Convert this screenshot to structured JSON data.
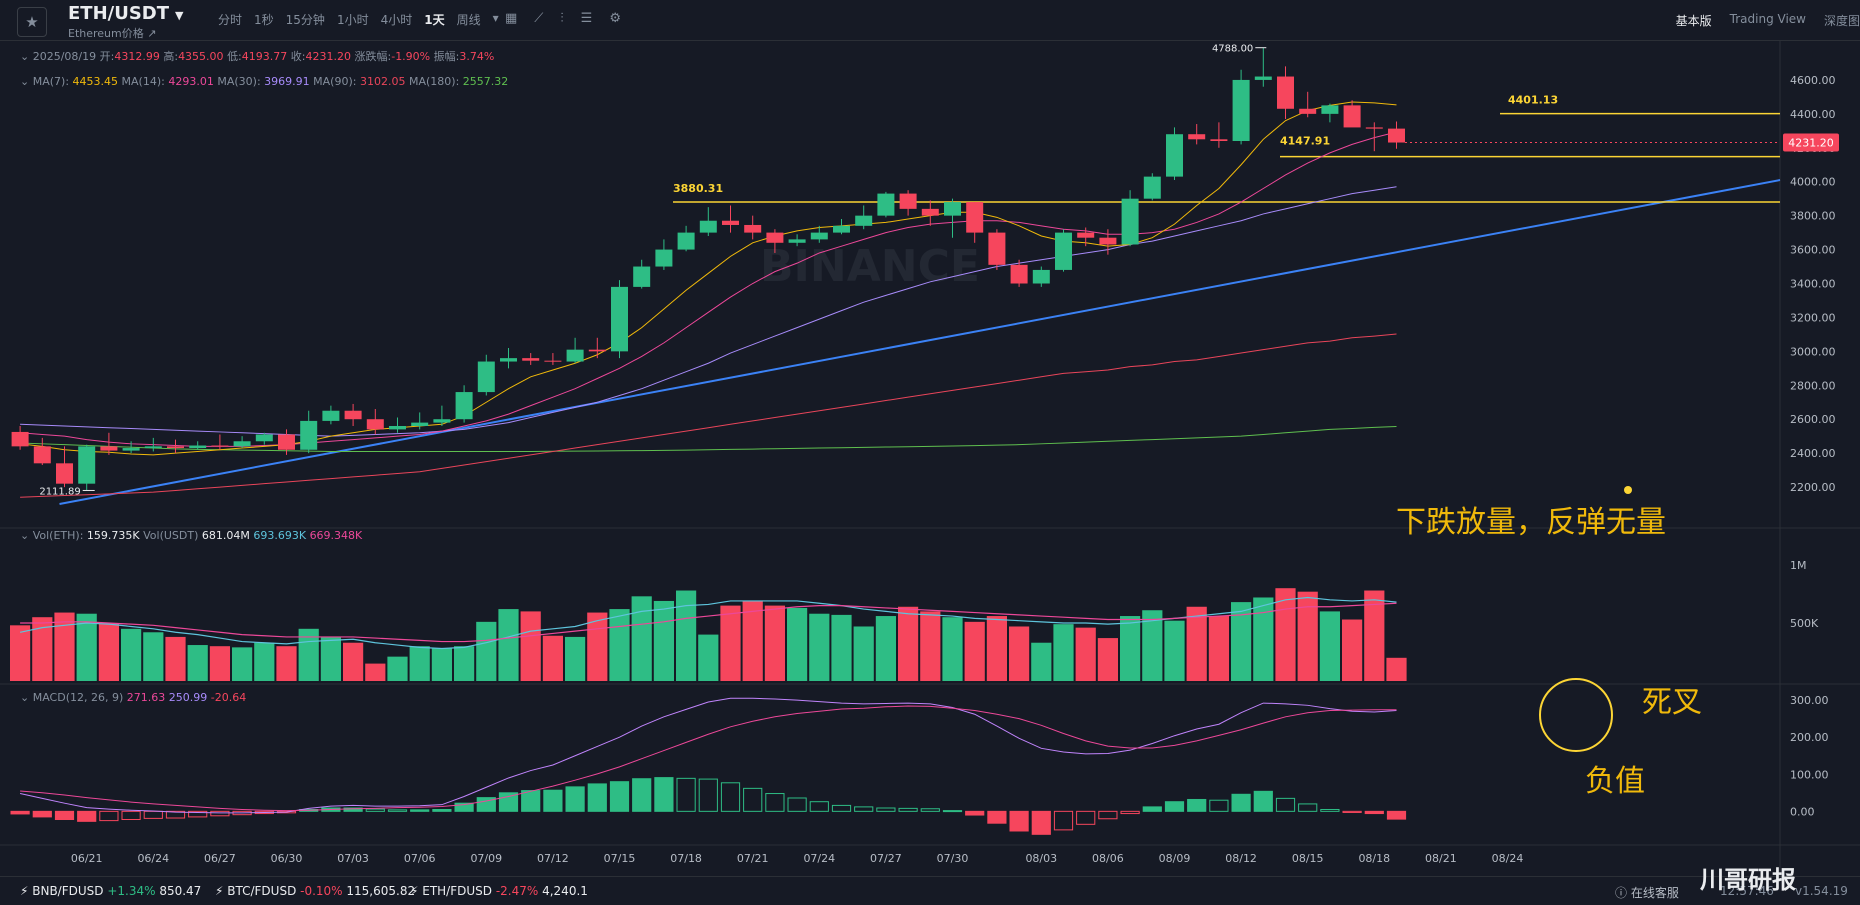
{
  "header": {
    "symbol": "ETH/USDT",
    "subtitle": "Ethereum价格 ↗",
    "intervals": [
      {
        "label": "分时"
      },
      {
        "label": "1秒"
      },
      {
        "label": "15分钟"
      },
      {
        "label": "1小时"
      },
      {
        "label": "4小时"
      },
      {
        "label": "1天",
        "active": true
      },
      {
        "label": "周线"
      }
    ],
    "views": [
      {
        "label": "基本版",
        "active": true
      },
      {
        "label": "Trading View"
      },
      {
        "label": "深度图"
      }
    ],
    "icons": [
      "calendar-icon",
      "draw-icon",
      "indicator-icon",
      "template-icon",
      "settings-icon"
    ]
  },
  "ohlc": {
    "date": "2025/08/19",
    "open_label": "开:",
    "open": "4312.99",
    "high_label": "高:",
    "high": "4355.00",
    "low_label": "低:",
    "low": "4193.77",
    "close_label": "收:",
    "close": "4231.20",
    "change_label": "涨跌幅:",
    "change": "-1.90%",
    "amp_label": "振幅:",
    "amp": "3.74%"
  },
  "ma_legend": {
    "ma7_label": "MA(7):",
    "ma7": "4453.45",
    "ma14_label": "MA(14):",
    "ma14": "4293.01",
    "ma30_label": "MA(30):",
    "ma30": "3969.91",
    "ma90_label": "MA(90):",
    "ma90": "3102.05",
    "ma180_label": "MA(180):",
    "ma180": "2557.32"
  },
  "vol_legend": {
    "eth_label": "Vol(ETH):",
    "eth": "159.735K",
    "usdt_label": "Vol(USDT)",
    "usdt": "681.04M",
    "ma1": "693.693K",
    "ma2": "669.348K"
  },
  "macd_legend": {
    "label": "MACD(12, 26, 9)",
    "dif": "271.63",
    "dea": "250.99",
    "hist": "-20.64"
  },
  "price_axis": [
    "4600.00",
    "4400.00",
    "4200.00",
    "4000.00",
    "3800.00",
    "3600.00",
    "3400.00",
    "3200.00",
    "3000.00",
    "2800.00",
    "2600.00",
    "2400.00",
    "2200.00"
  ],
  "vol_axis": [
    "1M",
    "500K"
  ],
  "macd_axis": [
    "300.00",
    "200.00",
    "100.00",
    "0.00"
  ],
  "date_axis": [
    "06/21",
    "06/24",
    "06/27",
    "06/30",
    "07/03",
    "07/06",
    "07/09",
    "07/12",
    "07/15",
    "07/18",
    "07/21",
    "07/24",
    "07/27",
    "07/30",
    "08/03",
    "08/06",
    "08/09",
    "08/12",
    "08/15",
    "08/18",
    "08/21",
    "08/24"
  ],
  "current_price_tag": "4231.20",
  "level_labels": {
    "l3880": "3880.31",
    "l4147": "4147.91",
    "l4401": "4401.13",
    "high": "4788.00",
    "low": "2111.89"
  },
  "annotations": {
    "volume_note": "下跌放量，反弹无量",
    "death_cross": "死叉",
    "negative": "负值"
  },
  "watermark": "BINANCE",
  "corner_watermark": "川哥研报",
  "footer": {
    "tickers": [
      {
        "pair": "BNB/FDUSD",
        "change": "+1.34%",
        "price": "850.47",
        "dir": "up"
      },
      {
        "pair": "BTC/FDUSD",
        "change": "-0.10%",
        "price": "115,605.82",
        "dir": "dn"
      },
      {
        "pair": "ETH/FDUSD",
        "change": "-2.47%",
        "price": "4,240.1",
        "dir": "dn"
      }
    ],
    "support": "在线客服",
    "time": "12:57:46",
    "version": "v1.54.19"
  },
  "colors": {
    "up": "#2ebd85",
    "down": "#f6465d",
    "ma7": "#f0b90b",
    "ma14": "#ec4899",
    "ma30": "#a78bfa",
    "ma90": "#e8455a",
    "ma180": "#5fbf4f",
    "trend": "#3b82f6",
    "level": "#fcd535"
  },
  "chart_data": {
    "type": "candlestick",
    "dates": [
      "06/18",
      "06/19",
      "06/20",
      "06/21",
      "06/22",
      "06/23",
      "06/24",
      "06/25",
      "06/26",
      "06/27",
      "06/28",
      "06/29",
      "06/30",
      "07/01",
      "07/02",
      "07/03",
      "07/04",
      "07/05",
      "07/06",
      "07/07",
      "07/08",
      "07/09",
      "07/10",
      "07/11",
      "07/12",
      "07/13",
      "07/14",
      "07/15",
      "07/16",
      "07/17",
      "07/18",
      "07/19",
      "07/20",
      "07/21",
      "07/22",
      "07/23",
      "07/24",
      "07/25",
      "07/26",
      "07/27",
      "07/28",
      "07/29",
      "07/30",
      "07/31",
      "08/01",
      "08/02",
      "08/03",
      "08/04",
      "08/05",
      "08/06",
      "08/07",
      "08/08",
      "08/09",
      "08/10",
      "08/11",
      "08/12",
      "08/13",
      "08/14",
      "08/15",
      "08/16",
      "08/17",
      "08/18",
      "08/19"
    ],
    "open": [
      2525,
      2440,
      2340,
      2220,
      2440,
      2415,
      2430,
      2440,
      2430,
      2445,
      2440,
      2470,
      2510,
      2420,
      2590,
      2650,
      2600,
      2540,
      2560,
      2580,
      2600,
      2760,
      2940,
      2960,
      2945,
      2940,
      3010,
      3000,
      3380,
      3500,
      3600,
      3700,
      3770,
      3745,
      3700,
      3640,
      3660,
      3700,
      3740,
      3800,
      3930,
      3840,
      3800,
      3880,
      3700,
      3510,
      3400,
      3480,
      3700,
      3670,
      3630,
      3900,
      4030,
      4280,
      4250,
      4240,
      4600,
      4620,
      4430,
      4400,
      4450,
      4320,
      4313
    ],
    "high": [
      2560,
      2490,
      2440,
      2450,
      2520,
      2470,
      2490,
      2480,
      2470,
      2510,
      2500,
      2520,
      2540,
      2650,
      2680,
      2690,
      2660,
      2610,
      2640,
      2680,
      2800,
      2980,
      3020,
      2990,
      2990,
      3080,
      3080,
      3420,
      3540,
      3660,
      3740,
      3850,
      3860,
      3800,
      3720,
      3690,
      3740,
      3780,
      3860,
      3940,
      3950,
      3890,
      3900,
      3880,
      3720,
      3540,
      3500,
      3720,
      3730,
      3720,
      3950,
      4050,
      4320,
      4340,
      4350,
      4660,
      4790,
      4680,
      4530,
      4460,
      4480,
      4350,
      4355
    ],
    "low": [
      2420,
      2330,
      2200,
      2180,
      2390,
      2400,
      2410,
      2400,
      2420,
      2420,
      2430,
      2450,
      2390,
      2400,
      2570,
      2560,
      2510,
      2520,
      2540,
      2560,
      2580,
      2740,
      2900,
      2920,
      2920,
      2930,
      2960,
      2960,
      3370,
      3480,
      3590,
      3680,
      3700,
      3660,
      3580,
      3620,
      3640,
      3690,
      3720,
      3790,
      3800,
      3740,
      3670,
      3640,
      3480,
      3380,
      3380,
      3470,
      3620,
      3570,
      3620,
      3890,
      4010,
      4220,
      4200,
      4220,
      4560,
      4370,
      4380,
      4350,
      4340,
      4180,
      4194
    ],
    "close": [
      2440,
      2340,
      2220,
      2440,
      2415,
      2430,
      2440,
      2430,
      2445,
      2440,
      2470,
      2510,
      2420,
      2590,
      2650,
      2600,
      2540,
      2560,
      2580,
      2600,
      2760,
      2940,
      2960,
      2945,
      2940,
      3010,
      3000,
      3380,
      3500,
      3600,
      3700,
      3770,
      3745,
      3700,
      3640,
      3660,
      3700,
      3740,
      3800,
      3930,
      3840,
      3800,
      3880,
      3700,
      3510,
      3400,
      3480,
      3700,
      3670,
      3630,
      3900,
      4030,
      4280,
      4250,
      4240,
      4600,
      4620,
      4430,
      4400,
      4450,
      4320,
      4313,
      4231
    ],
    "volume": [
      480,
      550,
      590,
      580,
      500,
      450,
      420,
      380,
      310,
      300,
      290,
      330,
      300,
      450,
      380,
      330,
      150,
      210,
      300,
      280,
      300,
      510,
      620,
      600,
      390,
      380,
      590,
      620,
      730,
      690,
      780,
      400,
      650,
      690,
      650,
      630,
      580,
      570,
      470,
      560,
      640,
      600,
      550,
      510,
      560,
      470,
      330,
      490,
      460,
      370,
      560,
      610,
      520,
      640,
      560,
      680,
      720,
      800,
      770,
      600,
      530,
      780,
      200
    ],
    "macd_dif": [
      48,
      35,
      22,
      10,
      6,
      3,
      1,
      -2,
      -3,
      -4,
      -4,
      -3,
      -2,
      8,
      14,
      16,
      14,
      14,
      15,
      18,
      40,
      65,
      90,
      110,
      125,
      150,
      175,
      200,
      230,
      255,
      275,
      295,
      305,
      305,
      303,
      300,
      296,
      292,
      290,
      291,
      292,
      290,
      280,
      262,
      230,
      197,
      170,
      160,
      155,
      156,
      165,
      183,
      204,
      222,
      235,
      266,
      292,
      290,
      286,
      277,
      270,
      268,
      272
    ],
    "macd_dea": [
      55,
      50,
      44,
      37,
      31,
      25,
      20,
      16,
      12,
      8,
      5,
      3,
      2,
      3,
      5,
      7,
      8,
      10,
      11,
      13,
      18,
      28,
      40,
      54,
      68,
      84,
      101,
      120,
      142,
      164,
      186,
      208,
      228,
      243,
      255,
      264,
      270,
      276,
      278,
      282,
      284,
      283,
      278,
      272,
      262,
      250,
      232,
      210,
      190,
      176,
      171,
      171,
      178,
      190,
      205,
      220,
      238,
      255,
      266,
      272,
      273,
      274,
      274
    ],
    "macd_hist": [
      -7,
      -15,
      -22,
      -27,
      -25,
      -22,
      -19,
      -18,
      -15,
      -12,
      -9,
      -6,
      -4,
      5,
      9,
      9,
      6,
      4,
      4,
      5,
      22,
      37,
      50,
      56,
      57,
      66,
      74,
      80,
      88,
      91,
      89,
      87,
      77,
      62,
      48,
      36,
      26,
      16,
      12,
      9,
      8,
      7,
      2,
      -10,
      -32,
      -53,
      -62,
      -50,
      -35,
      -20,
      -6,
      12,
      26,
      32,
      30,
      46,
      54,
      35,
      20,
      5,
      -3,
      -6,
      -21
    ],
    "ma7": [
      2455,
      2440,
      2420,
      2410,
      2405,
      2395,
      2390,
      2400,
      2410,
      2420,
      2430,
      2440,
      2450,
      2470,
      2500,
      2520,
      2540,
      2550,
      2560,
      2570,
      2620,
      2700,
      2780,
      2850,
      2890,
      2930,
      2980,
      3050,
      3140,
      3250,
      3360,
      3460,
      3560,
      3640,
      3680,
      3710,
      3730,
      3740,
      3750,
      3760,
      3780,
      3800,
      3820,
      3820,
      3790,
      3740,
      3680,
      3650,
      3640,
      3620,
      3630,
      3670,
      3750,
      3860,
      3960,
      4100,
      4250,
      4360,
      4420,
      4450,
      4470,
      4465,
      4453
    ],
    "ma14": [
      2520,
      2510,
      2500,
      2480,
      2465,
      2455,
      2450,
      2445,
      2440,
      2440,
      2440,
      2445,
      2450,
      2460,
      2470,
      2480,
      2490,
      2500,
      2510,
      2530,
      2560,
      2590,
      2630,
      2680,
      2730,
      2780,
      2840,
      2900,
      2970,
      3050,
      3140,
      3230,
      3320,
      3400,
      3470,
      3520,
      3580,
      3620,
      3660,
      3700,
      3730,
      3750,
      3760,
      3770,
      3770,
      3760,
      3740,
      3720,
      3710,
      3690,
      3690,
      3700,
      3720,
      3760,
      3810,
      3880,
      3960,
      4040,
      4110,
      4170,
      4220,
      4260,
      4293
    ],
    "ma30": [
      2570,
      2565,
      2560,
      2555,
      2550,
      2545,
      2540,
      2535,
      2530,
      2525,
      2520,
      2515,
      2510,
      2505,
      2500,
      2505,
      2510,
      2515,
      2520,
      2530,
      2540,
      2560,
      2580,
      2610,
      2640,
      2670,
      2700,
      2740,
      2780,
      2830,
      2880,
      2930,
      2990,
      3040,
      3090,
      3140,
      3190,
      3240,
      3290,
      3330,
      3370,
      3410,
      3440,
      3470,
      3500,
      3520,
      3540,
      3560,
      3580,
      3600,
      3630,
      3650,
      3680,
      3710,
      3740,
      3770,
      3810,
      3840,
      3870,
      3900,
      3930,
      3950,
      3970
    ],
    "ma90": [
      2140,
      2145,
      2150,
      2155,
      2160,
      2165,
      2170,
      2180,
      2190,
      2200,
      2210,
      2220,
      2230,
      2240,
      2250,
      2260,
      2270,
      2280,
      2290,
      2310,
      2330,
      2350,
      2370,
      2390,
      2410,
      2430,
      2450,
      2470,
      2490,
      2510,
      2530,
      2550,
      2570,
      2590,
      2610,
      2630,
      2650,
      2670,
      2690,
      2710,
      2730,
      2750,
      2770,
      2790,
      2810,
      2830,
      2850,
      2870,
      2880,
      2890,
      2910,
      2920,
      2940,
      2950,
      2970,
      2990,
      3010,
      3030,
      3050,
      3060,
      3080,
      3090,
      3102
    ],
    "ma180": [
      2460,
      2455,
      2450,
      2445,
      2440,
      2435,
      2430,
      2425,
      2422,
      2420,
      2418,
      2416,
      2414,
      2412,
      2410,
      2410,
      2410,
      2410,
      2410,
      2410,
      2410,
      2410,
      2410,
      2410,
      2411,
      2412,
      2413,
      2414,
      2415,
      2416,
      2418,
      2420,
      2422,
      2424,
      2426,
      2428,
      2430,
      2432,
      2434,
      2436,
      2438,
      2440,
      2442,
      2444,
      2447,
      2450,
      2455,
      2460,
      2465,
      2470,
      2475,
      2480,
      2485,
      2490,
      2495,
      2500,
      2510,
      2520,
      2530,
      2540,
      2545,
      2552,
      2557
    ],
    "vol_ma1": [
      420,
      460,
      480,
      500,
      490,
      470,
      450,
      420,
      400,
      370,
      340,
      330,
      320,
      340,
      350,
      360,
      330,
      310,
      290,
      280,
      290,
      330,
      380,
      430,
      450,
      470,
      520,
      560,
      600,
      620,
      650,
      660,
      690,
      690,
      690,
      690,
      670,
      650,
      620,
      600,
      580,
      570,
      560,
      540,
      530,
      520,
      510,
      500,
      500,
      490,
      500,
      520,
      540,
      560,
      580,
      600,
      650,
      700,
      720,
      700,
      690,
      700,
      680
    ],
    "vol_ma2": [
      500,
      500,
      510,
      510,
      500,
      490,
      480,
      460,
      440,
      420,
      400,
      390,
      380,
      380,
      380,
      380,
      370,
      360,
      350,
      340,
      340,
      350,
      370,
      390,
      410,
      430,
      450,
      470,
      490,
      510,
      540,
      560,
      580,
      600,
      620,
      640,
      650,
      650,
      640,
      630,
      620,
      610,
      600,
      590,
      580,
      570,
      560,
      550,
      540,
      530,
      530,
      530,
      540,
      550,
      560,
      570,
      590,
      620,
      640,
      640,
      650,
      660,
      670
    ],
    "levels": [
      3880.31,
      4147.91,
      4401.13
    ],
    "price_range": [
      2000,
      4800
    ],
    "volume_range_k": [
      0,
      1250
    ],
    "macd_range": [
      -80,
      330
    ]
  }
}
